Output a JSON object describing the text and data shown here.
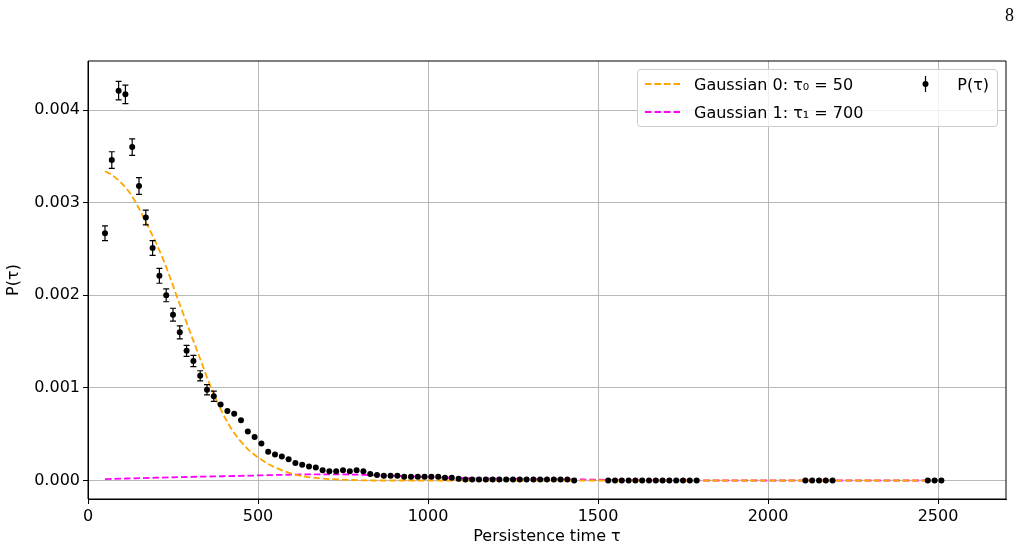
{
  "chart_data": {
    "type": "scatter",
    "xlabel": "Persistence time τ",
    "ylabel": "P(τ)",
    "annotations": [
      "8"
    ],
    "xlim": [
      0,
      2700
    ],
    "xticks": [
      0,
      500,
      1000,
      1500,
      2000,
      2500
    ],
    "ylim": [
      -0.0002,
      0.00453
    ],
    "yticks": [
      {
        "value": 0,
        "label": "0.000"
      },
      0.001,
      0.002,
      0.003,
      0.004
    ],
    "grid": true,
    "legend": "top right",
    "series": [
      {
        "type": "line",
        "name": "Gaussian 0: τ₀ = 50",
        "color": "#ffa500",
        "line_style": "dashed",
        "marker": "none",
        "x": [
          50,
          74,
          124,
          173,
          222,
          271,
          320,
          369,
          418,
          467,
          516,
          545,
          594,
          643,
          692,
          741,
          839,
          2510
        ],
        "values": [
          0.00334,
          0.00329,
          0.0031,
          0.00277,
          0.00238,
          0.00189,
          0.00141,
          0.00094,
          0.00058,
          0.00035,
          0.00021,
          0.00015,
          8e-05,
          4e-05,
          2e-05,
          1e-05,
          0,
          0
        ]
      },
      {
        "type": "line",
        "name": "Gaussian 1: τ₁ = 700",
        "color": "#ff00ff",
        "line_style": "dashed",
        "marker": "none",
        "x": [
          50,
          200,
          450,
          650,
          750,
          900,
          1050,
          1200,
          1470,
          1700,
          2510
        ],
        "values": [
          1.5e-05,
          3e-05,
          5e-05,
          6.5e-05,
          6.5e-05,
          5e-05,
          3e-05,
          2e-05,
          1e-05,
          0,
          0
        ]
      },
      {
        "name": "P(τ)",
        "color": "#000000",
        "marker": "circle",
        "x": [
          50,
          70,
          90,
          110,
          130,
          150,
          170,
          190,
          210,
          230,
          250,
          270,
          290,
          310,
          330,
          350,
          370,
          390,
          410,
          430,
          450,
          470,
          490,
          510,
          530,
          550,
          570,
          590,
          610,
          630,
          650,
          670,
          690,
          710,
          730,
          750,
          770,
          790,
          810,
          830,
          850,
          870,
          890,
          910,
          930,
          950,
          970,
          990,
          1010,
          1030,
          1050,
          1070,
          1090,
          1110,
          1130,
          1150,
          1170,
          1190,
          1210,
          1230,
          1250,
          1270,
          1290,
          1310,
          1330,
          1350,
          1370,
          1390,
          1410,
          1430,
          1530,
          1550,
          1570,
          1590,
          1610,
          1630,
          1650,
          1670,
          1690,
          1710,
          1730,
          1750,
          1770,
          1790,
          2110,
          2130,
          2150,
          2170,
          2190,
          2470,
          2490,
          2510
        ],
        "values": [
          0.00267,
          0.00346,
          0.00421,
          0.00417,
          0.0036,
          0.00318,
          0.00284,
          0.00251,
          0.00221,
          0.002,
          0.00179,
          0.0016,
          0.0014,
          0.00129,
          0.00113,
          0.00098,
          0.00091,
          0.00082,
          0.00075,
          0.00072,
          0.00065,
          0.00053,
          0.00047,
          0.0004,
          0.00031,
          0.00028,
          0.00026,
          0.00023,
          0.00019,
          0.00017,
          0.00015,
          0.00014,
          0.00011,
          0.0001,
          0.0001,
          0.00011,
          0.0001,
          0.00011,
          0.0001,
          7e-05,
          6e-05,
          5e-05,
          5e-05,
          5e-05,
          4e-05,
          4e-05,
          4e-05,
          4e-05,
          4e-05,
          4e-05,
          3e-05,
          3e-05,
          2e-05,
          1e-05,
          1e-05,
          1e-05,
          1e-05,
          1e-05,
          1e-05,
          1e-05,
          1e-05,
          1e-05,
          1e-05,
          1e-05,
          1e-05,
          1e-05,
          1e-05,
          1e-05,
          1e-05,
          0,
          0,
          0,
          0,
          0,
          0,
          0,
          0,
          0,
          0,
          0,
          0,
          0,
          0,
          0,
          0,
          0,
          0,
          0,
          0,
          0,
          0,
          0
        ],
        "errors": [
          8e-05,
          9e-05,
          0.0001,
          0.0001,
          9e-05,
          9e-05,
          8e-05,
          8e-05,
          8e-05,
          7e-05,
          7e-05,
          7e-05,
          6e-05,
          6e-05,
          5.5e-05,
          5.5e-05,
          5.5e-05,
          null,
          null,
          null,
          null,
          null,
          null,
          null,
          null,
          null,
          null,
          null,
          null,
          null,
          null,
          null,
          null,
          null,
          null,
          null,
          null,
          null,
          null,
          null,
          null,
          null,
          null,
          null,
          null,
          null,
          null,
          null,
          null,
          null,
          null,
          null,
          null,
          null,
          null,
          null,
          null,
          null,
          null,
          null,
          null,
          null,
          null,
          null,
          null,
          null,
          null,
          null,
          null,
          null,
          null,
          null,
          null,
          null,
          null,
          null,
          null,
          null,
          null,
          null,
          null,
          null,
          null,
          null,
          null,
          null,
          null,
          null,
          null,
          null,
          null,
          null
        ]
      }
    ]
  }
}
